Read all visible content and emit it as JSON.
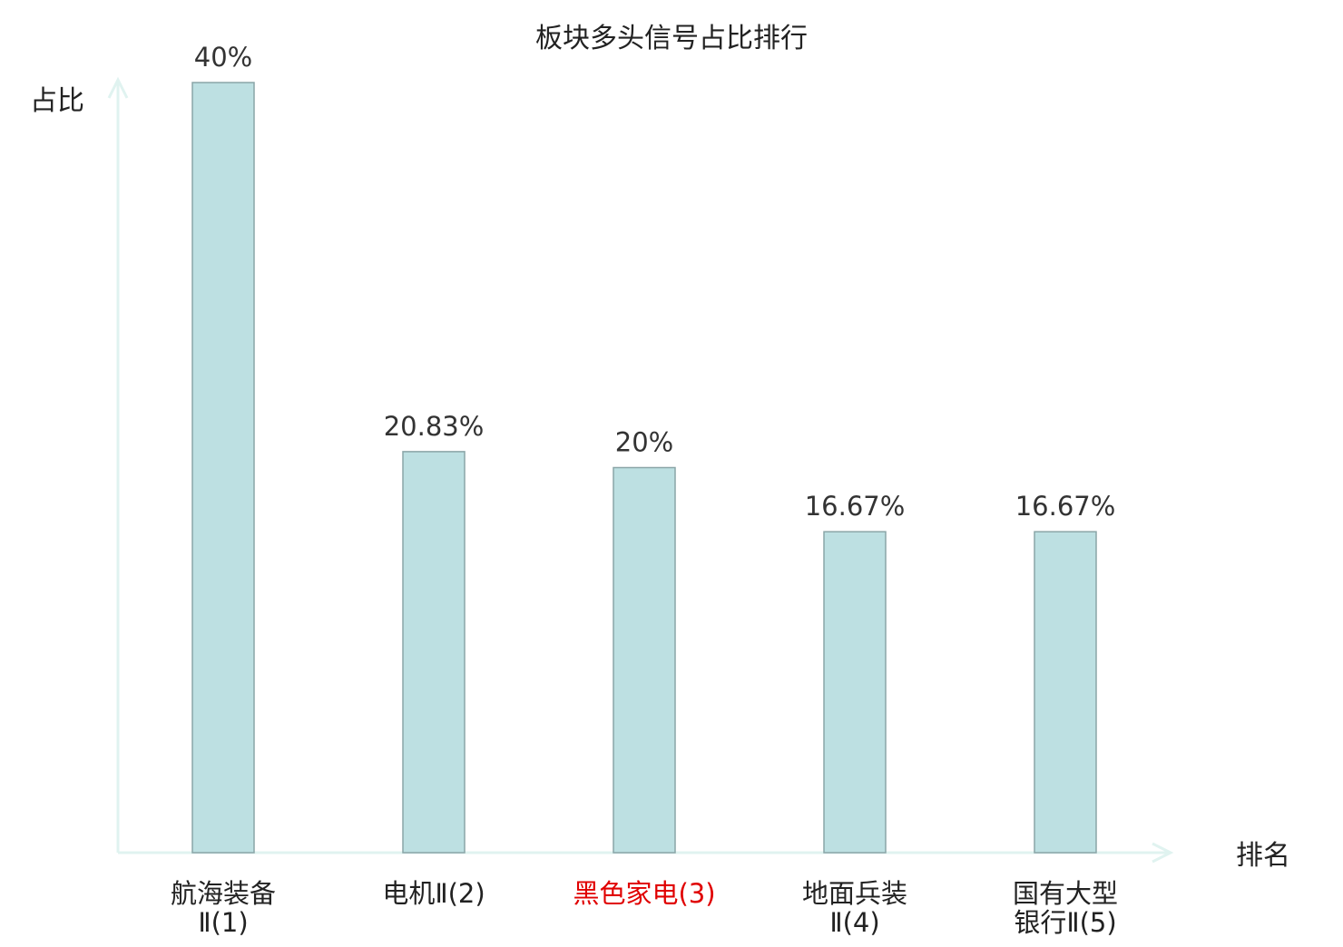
{
  "chart_data": {
    "type": "bar",
    "title": "板块多头信号占比排行",
    "ylabel": "占比",
    "xlabel": "排名",
    "ylim": [
      0,
      40
    ],
    "grid": false,
    "categories": [
      [
        "航海装备",
        "Ⅱ(1)"
      ],
      [
        "电机Ⅱ(2)"
      ],
      [
        "黑色家电(3)"
      ],
      [
        "地面兵装",
        "Ⅱ(4)"
      ],
      [
        "国有大型",
        "银行Ⅱ(5)"
      ]
    ],
    "values": [
      40,
      20.83,
      20,
      16.67,
      16.67
    ],
    "value_labels": [
      "40%",
      "20.83%",
      "20%",
      "16.67%",
      "16.67%"
    ],
    "highlight_index": 2
  },
  "colors": {
    "bar_fill": "#bde0e2",
    "bar_stroke": "#8aa5a7",
    "axis": "#e0f3f0",
    "text": "#222222",
    "value_label": "#333333",
    "highlight_label": "#e00000"
  }
}
